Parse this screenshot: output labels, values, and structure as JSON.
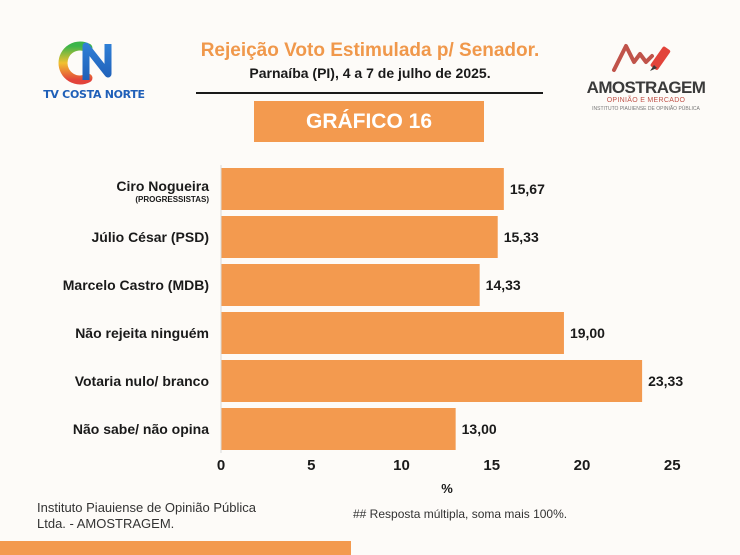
{
  "header": {
    "title": "Rejeição Voto Estimulada p/ Senador.",
    "subtitle": "Parnaíba (PI), 4 a 7 de julho de 2025.",
    "badge": "GRÁFICO 16"
  },
  "logos": {
    "left_text": "TV COSTA NORTE",
    "right_brand": "AMOSTRAGEM",
    "right_tagline": "OPINIÃO E MERCADO",
    "right_institute": "INSTITUTO PIAUIENSE DE OPINIÃO PÚBLICA"
  },
  "chart_data": {
    "type": "bar",
    "orientation": "horizontal",
    "categories": [
      {
        "label": "Ciro Nogueira",
        "sublabel": "(PROGRESSISTAS)"
      },
      {
        "label": "Júlio César (PSD)"
      },
      {
        "label": "Marcelo Castro (MDB)"
      },
      {
        "label": "Não rejeita ninguém"
      },
      {
        "label": "Votaria nulo/ branco"
      },
      {
        "label": "Não sabe/ não opina"
      }
    ],
    "values": [
      15.67,
      15.33,
      14.33,
      19.0,
      23.33,
      13.0
    ],
    "value_labels": [
      "15,67",
      "15,33",
      "14,33",
      "19,00",
      "23,33",
      "13,00"
    ],
    "xlabel": "%",
    "xlim": [
      0,
      25
    ],
    "xticks": [
      0,
      5,
      10,
      15,
      20,
      25
    ],
    "grid": false,
    "bar_color": "#f39a4f"
  },
  "footer": {
    "source": "Instituto Piauiense de Opinião Pública Ltda. - AMOSTRAGEM.",
    "note": "## Resposta múltipla, soma mais 100%."
  },
  "colors": {
    "accent": "#f39a4f",
    "title": "#f0984b",
    "tv_blue": "#1f5fb8",
    "tv_green": "#38b54a",
    "tv_red": "#e2433a",
    "brand_red": "#c0534a"
  }
}
